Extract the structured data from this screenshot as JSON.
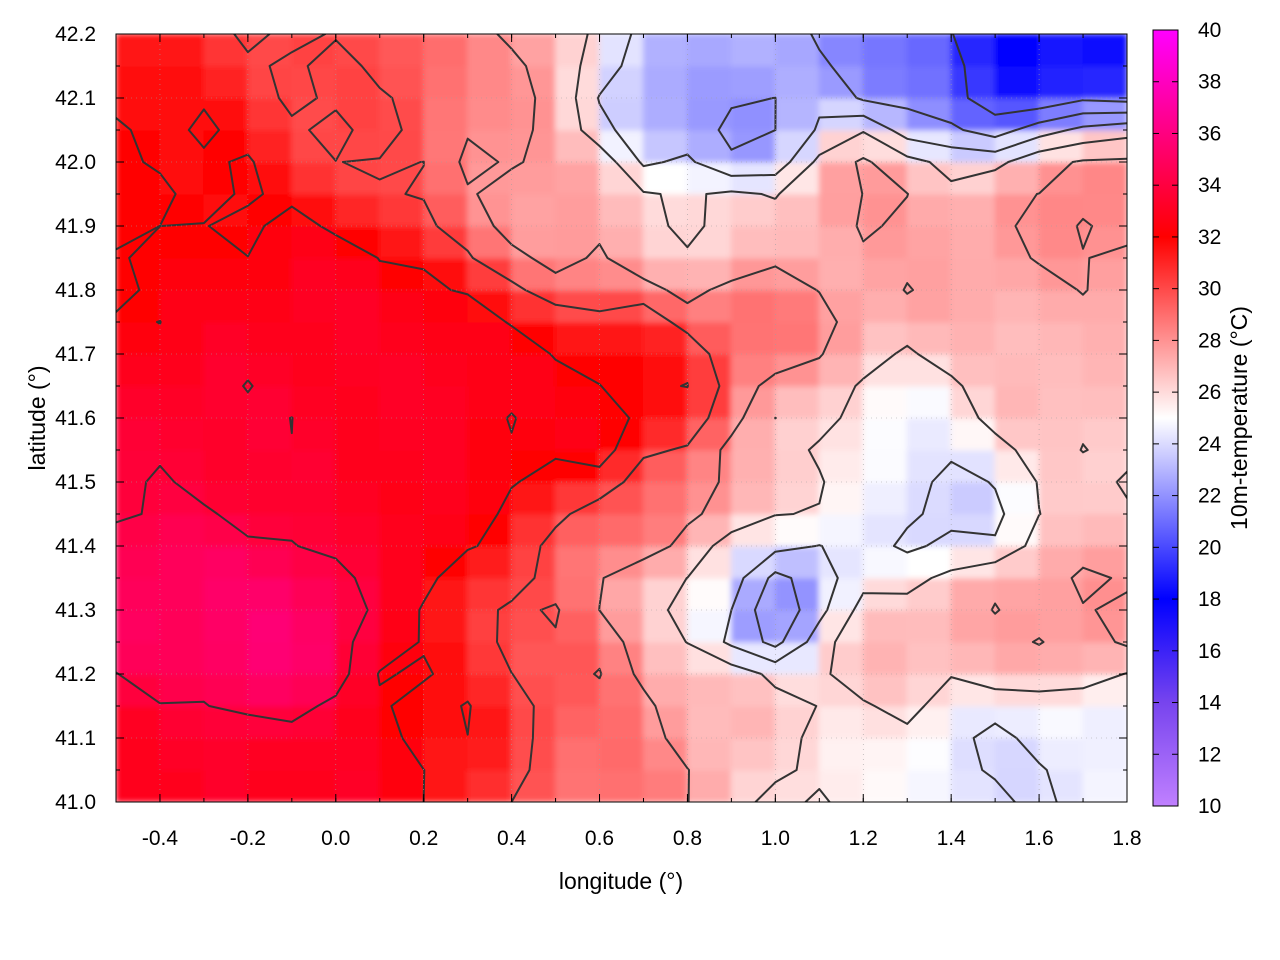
{
  "chart_data": {
    "type": "heatmap",
    "title": "",
    "xlabel": "longitude (°)",
    "ylabel": "latitude (°)",
    "colorbar_label": "10m-temperature (°C)",
    "xlim": [
      -0.5,
      1.8
    ],
    "ylim": [
      41.0,
      42.2
    ],
    "x_ticks": [
      -0.4,
      -0.2,
      0.0,
      0.2,
      0.4,
      0.6,
      0.8,
      1.0,
      1.2,
      1.4,
      1.6,
      1.8
    ],
    "x_tick_labels": [
      "-0.4",
      "-0.2",
      "0.0",
      "0.2",
      "0.4",
      "0.6",
      "0.8",
      "1.0",
      "1.2",
      "1.4",
      "1.6",
      "1.8"
    ],
    "y_ticks": [
      41.0,
      41.1,
      41.2,
      41.3,
      41.4,
      41.5,
      41.6,
      41.7,
      41.8,
      41.9,
      42.0,
      42.1,
      42.2
    ],
    "y_tick_labels": [
      "41.0",
      "41.1",
      "41.2",
      "41.3",
      "41.4",
      "41.5",
      "41.6",
      "41.7",
      "41.8",
      "41.9",
      "42.0",
      "42.1",
      "42.2"
    ],
    "colorbar_range": [
      10,
      40
    ],
    "colorbar_ticks": [
      10,
      12,
      14,
      16,
      18,
      20,
      22,
      24,
      26,
      28,
      30,
      32,
      34,
      36,
      38,
      40
    ],
    "colorbar_tick_labels": [
      "10",
      "12",
      "14",
      "16",
      "18",
      "20",
      "22",
      "24",
      "26",
      "28",
      "30",
      "32",
      "34",
      "36",
      "38",
      "40"
    ],
    "colormap": [
      {
        "value": 10,
        "color": "#c080ff"
      },
      {
        "value": 14,
        "color": "#7744ee"
      },
      {
        "value": 18,
        "color": "#0000ff"
      },
      {
        "value": 25,
        "color": "#ffffff"
      },
      {
        "value": 32,
        "color": "#ff0000"
      },
      {
        "value": 40,
        "color": "#ff00ff"
      }
    ],
    "grid": true,
    "contours": true,
    "grid_lon_step": 0.1,
    "grid_lat_step": 0.05,
    "temperature_anchors": [
      {
        "lon": -0.3,
        "lat": 41.3,
        "t": 35.0
      },
      {
        "lon": -0.15,
        "lat": 41.25,
        "t": 35.5
      },
      {
        "lon": -0.2,
        "lat": 41.55,
        "t": 33.5
      },
      {
        "lon": 0.0,
        "lat": 41.75,
        "t": 33.0
      },
      {
        "lon": 0.15,
        "lat": 41.5,
        "t": 33.0
      },
      {
        "lon": 0.25,
        "lat": 41.65,
        "t": 33.0
      },
      {
        "lon": 0.55,
        "lat": 41.6,
        "t": 32.5
      },
      {
        "lon": 0.7,
        "lat": 41.65,
        "t": 32.0
      },
      {
        "lon": -0.4,
        "lat": 41.95,
        "t": 32.0
      },
      {
        "lon": -0.4,
        "lat": 41.05,
        "t": 33.0
      },
      {
        "lon": 0.0,
        "lat": 41.05,
        "t": 33.0
      },
      {
        "lon": 0.3,
        "lat": 41.15,
        "t": 31.5
      },
      {
        "lon": 0.5,
        "lat": 41.2,
        "t": 29.5
      },
      {
        "lon": 0.6,
        "lat": 41.05,
        "t": 29.0
      },
      {
        "lon": 0.1,
        "lat": 42.1,
        "t": 30.0
      },
      {
        "lon": 0.4,
        "lat": 42.1,
        "t": 28.0
      },
      {
        "lon": 0.55,
        "lat": 41.95,
        "t": 27.5
      },
      {
        "lon": 0.75,
        "lat": 42.08,
        "t": 22.5
      },
      {
        "lon": 0.95,
        "lat": 42.05,
        "t": 22.0
      },
      {
        "lon": 0.85,
        "lat": 41.9,
        "t": 26.0
      },
      {
        "lon": 1.05,
        "lat": 41.9,
        "t": 27.0
      },
      {
        "lon": 1.2,
        "lat": 41.95,
        "t": 28.0
      },
      {
        "lon": 1.5,
        "lat": 42.17,
        "t": 18.0
      },
      {
        "lon": 1.7,
        "lat": 42.17,
        "t": 18.5
      },
      {
        "lon": 1.35,
        "lat": 42.15,
        "t": 21.0
      },
      {
        "lon": 1.7,
        "lat": 41.95,
        "t": 28.5
      },
      {
        "lon": 1.4,
        "lat": 41.85,
        "t": 27.5
      },
      {
        "lon": 0.95,
        "lat": 41.75,
        "t": 29.0
      },
      {
        "lon": 1.05,
        "lat": 41.55,
        "t": 26.5
      },
      {
        "lon": 1.3,
        "lat": 41.55,
        "t": 24.5
      },
      {
        "lon": 1.4,
        "lat": 41.45,
        "t": 23.5
      },
      {
        "lon": 1.6,
        "lat": 41.65,
        "t": 27.0
      },
      {
        "lon": 1.75,
        "lat": 41.5,
        "t": 26.5
      },
      {
        "lon": 1.0,
        "lat": 41.3,
        "t": 21.0
      },
      {
        "lon": 0.85,
        "lat": 41.35,
        "t": 25.5
      },
      {
        "lon": 0.75,
        "lat": 41.45,
        "t": 29.0
      },
      {
        "lon": 0.9,
        "lat": 41.15,
        "t": 27.0
      },
      {
        "lon": 1.2,
        "lat": 41.25,
        "t": 27.0
      },
      {
        "lon": 1.5,
        "lat": 41.3,
        "t": 27.5
      },
      {
        "lon": 1.7,
        "lat": 41.3,
        "t": 28.0
      },
      {
        "lon": 1.5,
        "lat": 41.05,
        "t": 24.0
      },
      {
        "lon": 1.75,
        "lat": 41.08,
        "t": 24.5
      },
      {
        "lon": 1.15,
        "lat": 41.05,
        "t": 25.5
      }
    ]
  }
}
